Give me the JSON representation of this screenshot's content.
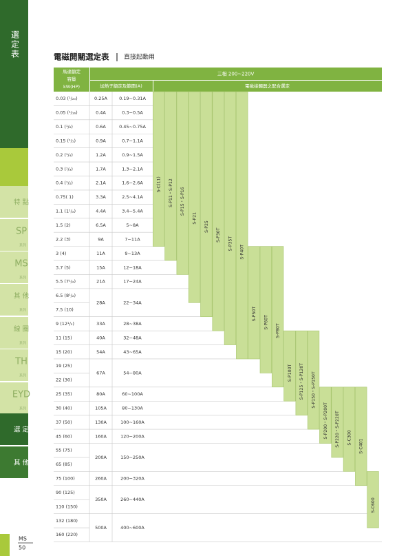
{
  "sidebar": {
    "title": "選定表",
    "tabs": [
      "特 點",
      "SP",
      "MS",
      "其 他",
      "線 圈",
      "TH",
      "EYD",
      "選 定",
      "其 他"
    ],
    "series": "系列"
  },
  "header": {
    "title": "電磁開關選定表",
    "subtitle": "直接起動用"
  },
  "table": {
    "motor_header": [
      "馬達額定",
      "容量",
      "kW(HP)"
    ],
    "phase_header": "三相 200~220V",
    "heater_header": "加熱子額定及範圍(A)",
    "contactor_header": "電磁接觸器之配合選定",
    "rows": [
      {
        "kw": "0.03 (¹/₂₀)",
        "a": "0.25A",
        "range": "0.19~0.31A"
      },
      {
        "kw": "0.05 (¹/₁₆)",
        "a": "0.4A",
        "range": "0.3~0.5A"
      },
      {
        "kw": "0.1 (¹/₈)",
        "a": "0.6A",
        "range": "0.45~0.75A"
      },
      {
        "kw": "0.15 (¹/₅)",
        "a": "0.9A",
        "range": "0.7~1.1A"
      },
      {
        "kw": "0.2 (¹/₄)",
        "a": "1.2A",
        "range": "0.9~1.5A"
      },
      {
        "kw": "0.3 (¹/₃)",
        "a": "1.7A",
        "range": "1.3~2.1A"
      },
      {
        "kw": "0.4 (¹/₂)",
        "a": "2.1A",
        "range": "1.6~2.6A"
      },
      {
        "kw": "0.75( 1)",
        "a": "3.3A",
        "range": "2.5~4.1A"
      },
      {
        "kw": "1.1 (1¹/₂)",
        "a": "4.4A",
        "range": "3.4~5.4A"
      },
      {
        "kw": "1.5 (2)",
        "a": "6.5A",
        "range": "5~8A"
      },
      {
        "kw": "2.2 (3)",
        "a": "9A",
        "range": "7~11A"
      },
      {
        "kw": "3 (4)",
        "a": "11A",
        "range": "9~13A"
      },
      {
        "kw": "3.7 (5)",
        "a": "15A",
        "range": "12~18A"
      },
      {
        "kw": "5.5 (7¹/₂)",
        "a": "21A",
        "range": "17~24A"
      },
      {
        "kw": "6.5 (8¹/₂)",
        "a": "28A",
        "range": "22~34A"
      },
      {
        "kw": "7.5 (10)"
      },
      {
        "kw": "9 (12¹/₂)",
        "a": "33A",
        "range": "28~38A"
      },
      {
        "kw": "11 (15)",
        "a": "40A",
        "range": "32~48A"
      },
      {
        "kw": "15 (20)",
        "a": "54A",
        "range": "43~65A"
      },
      {
        "kw": "19 (25)",
        "a": "67A",
        "range": "54~80A"
      },
      {
        "kw": "22 (30)"
      },
      {
        "kw": "25 (35)",
        "a": "80A",
        "range": "60~100A"
      },
      {
        "kw": "30 (40)",
        "a": "105A",
        "range": "80~130A"
      },
      {
        "kw": "37 (50)",
        "a": "130A",
        "range": "100~160A"
      },
      {
        "kw": "45 (60)",
        "a": "160A",
        "range": "120~200A"
      },
      {
        "kw": "55 (75)",
        "a": "200A",
        "range": "150~250A"
      },
      {
        "kw": "65 (85)"
      },
      {
        "kw": "75 (100)",
        "a": "260A",
        "range": "200~320A"
      },
      {
        "kw": "90 (125)",
        "a": "350A",
        "range": "260~440A"
      },
      {
        "kw": "110 (150)"
      },
      {
        "kw": "132 (180)",
        "a": "500A",
        "range": "400~600A"
      },
      {
        "kw": "160 (220)"
      }
    ],
    "contactors": [
      "S-C(11)",
      "S-P11・S-P12",
      "S-P15・S-P16",
      "S-P21",
      "S-P25",
      "S-P30T",
      "S-P35T",
      "S-P40T",
      "S-P50T",
      "S-P60T",
      "S-P80T",
      "S-P100T",
      "S-P125・S-P120T",
      "S-P150・S-P150T",
      "S-P200・S-P200T",
      "S-P220・S-P220T",
      "S-C300",
      "S-C401",
      "S-C600"
    ]
  },
  "footer": {
    "series": "MS",
    "page": "50"
  }
}
